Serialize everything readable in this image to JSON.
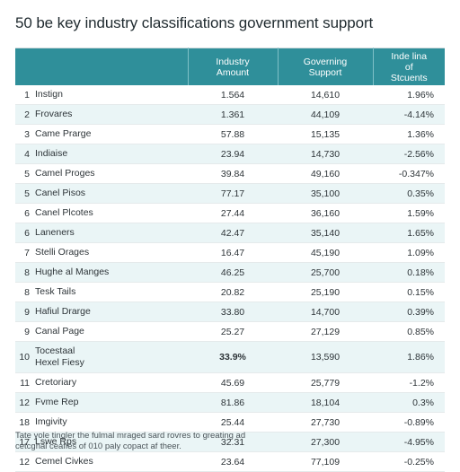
{
  "title": "50 be key industry classifications government support",
  "columns": {
    "amount": [
      "Industry",
      "Amount"
    ],
    "support": [
      "Governing",
      "Support"
    ],
    "students": [
      "Inde lina",
      "of",
      "Stcuents"
    ]
  },
  "rows": [
    {
      "idx": "1",
      "name": [
        "Instign"
      ],
      "amount": "1.564",
      "support": "14,610",
      "students": "1.96%"
    },
    {
      "idx": "2",
      "name": [
        "Frovares"
      ],
      "amount": "1.361",
      "support": "44,109",
      "students": "-4.14%"
    },
    {
      "idx": "3",
      "name": [
        "Came Prarge"
      ],
      "amount": "57.88",
      "support": "15,135",
      "students": "1.36%"
    },
    {
      "idx": "4",
      "name": [
        "Indiaise"
      ],
      "amount": "23.94",
      "support": "14,730",
      "students": "-2.56%"
    },
    {
      "idx": "5",
      "name": [
        "Camel Proges"
      ],
      "amount": "39.84",
      "support": "49,160",
      "students": "-0.347%"
    },
    {
      "idx": "5",
      "name": [
        "Canel Pisos"
      ],
      "amount": "77.17",
      "support": "35,100",
      "students": "0.35%"
    },
    {
      "idx": "6",
      "name": [
        "Canel Plcotes"
      ],
      "amount": "27.44",
      "support": "36,160",
      "students": "1.59%"
    },
    {
      "idx": "6",
      "name": [
        "Laneners"
      ],
      "amount": "42.47",
      "support": "35,140",
      "students": "1.65%"
    },
    {
      "idx": "7",
      "name": [
        "Stelli Orages"
      ],
      "amount": "16.47",
      "support": "45,190",
      "students": "1.09%"
    },
    {
      "idx": "8",
      "name": [
        "Hughe al Manges"
      ],
      "amount": "46.25",
      "support": "25,700",
      "students": "0.18%"
    },
    {
      "idx": "8",
      "name": [
        "Tesk Tails"
      ],
      "amount": "20.82",
      "support": "25,190",
      "students": "0.15%"
    },
    {
      "idx": "9",
      "name": [
        "Hafiul Drarge"
      ],
      "amount": "33.80",
      "support": "14,700",
      "students": "0.39%"
    },
    {
      "idx": "9",
      "name": [
        "Canal Page"
      ],
      "amount": "25.27",
      "support": "27,129",
      "students": "0.85%"
    },
    {
      "idx": "10",
      "name": [
        "Tocestaal",
        "Hexel Fiesy"
      ],
      "amount": "33.9%",
      "support": "13,590",
      "students": "1.86%",
      "bold_amount": true,
      "tall": true
    },
    {
      "idx": "11",
      "name": [
        "Cretoriary"
      ],
      "amount": "45.69",
      "support": "25,779",
      "students": "-1.2%"
    },
    {
      "idx": "12",
      "name": [
        "Fvme Rep"
      ],
      "amount": "81.86",
      "support": "18,104",
      "students": "0.3%"
    },
    {
      "idx": "18",
      "name": [
        "Imgivity"
      ],
      "amount": "25.44",
      "support": "27,730",
      "students": "-0.89%"
    },
    {
      "idx": "17",
      "name": [
        "Lswe Rps"
      ],
      "amount": "32.31",
      "support": "27,300",
      "students": "-4.95%"
    },
    {
      "idx": "12",
      "name": [
        "Cemel Civkes"
      ],
      "amount": "23.64",
      "support": "77,109",
      "students": "-0.25%"
    }
  ],
  "note": [
    "Tate yole tingler the fulmal mraged sard rovres to greating ad",
    "cetcgnal ceafies of 010 paly copact af theer."
  ]
}
